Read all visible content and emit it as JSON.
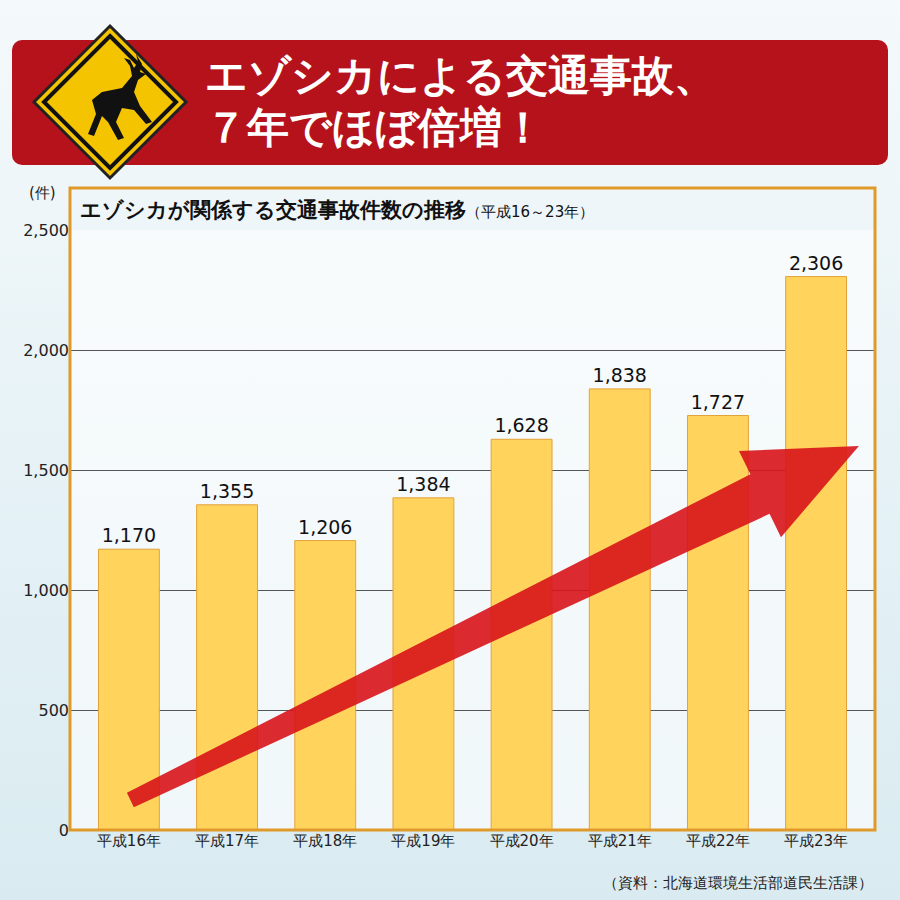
{
  "chart_data": {
    "type": "bar",
    "title": "エゾシカによる交通事故、７年でほぼ倍増！",
    "subtitle": "エゾシカが関係する交通事故件数の推移",
    "period": "（平成16～23年）",
    "ylabel": "(件)",
    "source": "（資料：北海道環境生活部道民生活課）",
    "categories": [
      "平成16年",
      "平成17年",
      "平成18年",
      "平成19年",
      "平成20年",
      "平成21年",
      "平成22年",
      "平成23年"
    ],
    "values": [
      1170,
      1355,
      1206,
      1384,
      1628,
      1838,
      1727,
      2306
    ],
    "value_labels": [
      "1,170",
      "1,355",
      "1,206",
      "1,384",
      "1,628",
      "1,838",
      "1,727",
      "2,306"
    ],
    "color": "#ffd35c",
    "ylim": [
      0,
      2500
    ],
    "yticks": [
      0,
      500,
      {
        "value": 1000,
        "label": "1,000"
      },
      {
        "value": 1500,
        "label": "1,500"
      },
      {
        "value": 2000,
        "label": "2,000"
      },
      {
        "value": 2500,
        "label": "2,500"
      }
    ],
    "grid": true,
    "data_labels": true
  }
}
